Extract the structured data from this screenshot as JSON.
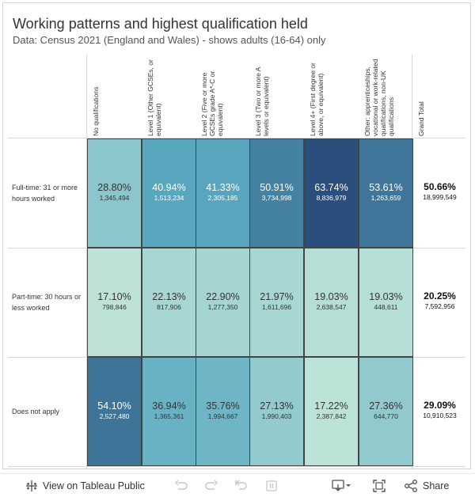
{
  "title": "Working patterns and highest qualification held",
  "subtitle": "Data: Census 2021 (England and Wales) - shows adults (16-64) only",
  "colors": {
    "scale_light": "#bde3d8",
    "scale_mid": "#5aa9c0",
    "scale_dark": "#2b4f7c",
    "grand_total_text": "#111111"
  },
  "chart_data": {
    "type": "table",
    "title": "Working patterns and highest qualification held",
    "columns": [
      "No qualifications",
      "Level 1 (Other GCSEs, or equivalent)",
      "Level 2 (Five or more GCSEs grade A*-C or equivalent)",
      "Level 3 (Two or more A levels or equivalent)",
      "Level 4+ (First degree or above, or equivalent)",
      "Other: apprenticeships, vocational or work-related qualifications, non-UK qualifications",
      "Grand Total"
    ],
    "rows": [
      {
        "label": "Full-time: 31 or more hours worked",
        "percent_values": [
          28.8,
          40.94,
          41.33,
          50.91,
          63.74,
          53.61,
          50.66
        ],
        "percent_labels": [
          "28.80%",
          "40.94%",
          "41.33%",
          "50.91%",
          "63.74%",
          "53.61%",
          "50.66%"
        ],
        "counts": [
          "1,345,494",
          "1,513,234",
          "2,305,185",
          "3,734,998",
          "8,836,979",
          "1,263,659",
          "18,999,549"
        ]
      },
      {
        "label": "Part-time: 30 hours or less worked",
        "percent_values": [
          17.1,
          22.13,
          22.9,
          21.97,
          19.03,
          19.03,
          20.25
        ],
        "percent_labels": [
          "17.10%",
          "22.13%",
          "22.90%",
          "21.97%",
          "19.03%",
          "19.03%",
          "20.25%"
        ],
        "counts": [
          "798,846",
          "817,906",
          "1,277,350",
          "1,611,696",
          "2,638,547",
          "448,611",
          "7,592,956"
        ]
      },
      {
        "label": "Does not apply",
        "percent_values": [
          54.1,
          36.94,
          35.76,
          27.13,
          17.22,
          27.36,
          29.09
        ],
        "percent_labels": [
          "54.10%",
          "36.94%",
          "35.76%",
          "27.13%",
          "17.22%",
          "27.36%",
          "29.09%"
        ],
        "counts": [
          "2,527,480",
          "1,365,361",
          "1,994,667",
          "1,990,403",
          "2,387,842",
          "644,770",
          "10,910,523"
        ]
      }
    ]
  },
  "toolbar": {
    "view_label": "View on Tableau Public",
    "share_label": "Share",
    "icons": [
      "tableau-logo-icon",
      "undo-icon",
      "redo-icon",
      "revert-icon",
      "pause-icon",
      "download-icon",
      "fullscreen-icon",
      "share-icon"
    ]
  }
}
